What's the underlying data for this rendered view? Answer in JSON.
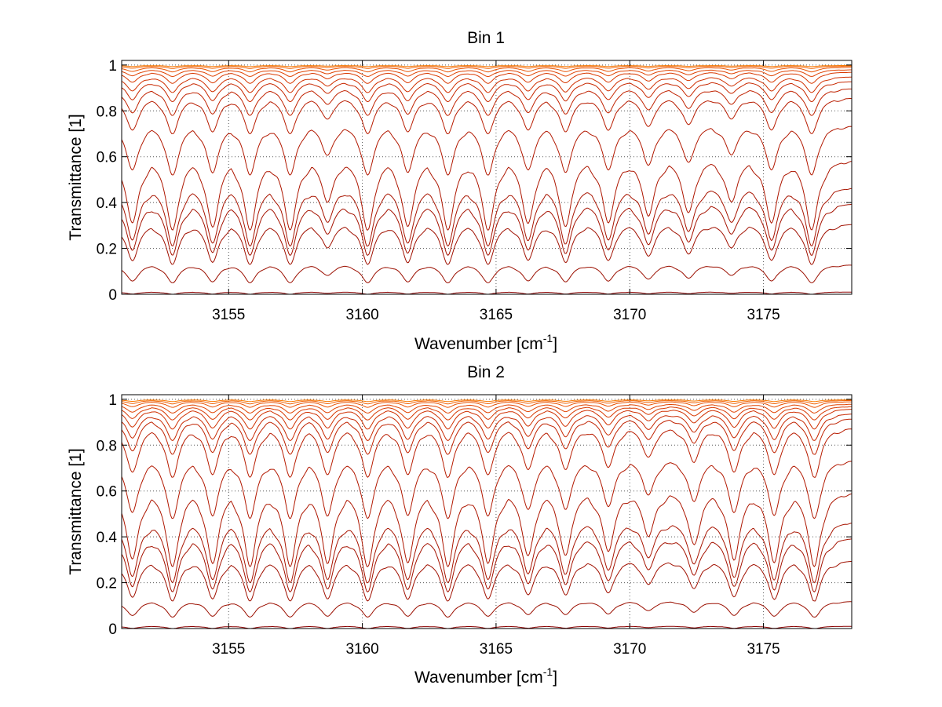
{
  "chart_data": [
    {
      "type": "line",
      "title": "Bin 1",
      "xlabel": "Wavenumber [cm",
      "xlabel_sup": "-1",
      "xlabel_suffix": "]",
      "ylabel": "Transmittance [1]",
      "xlim": [
        3151,
        3178.3
      ],
      "ylim": [
        0,
        1.02
      ],
      "grid": true,
      "xticks": [
        3155,
        3160,
        3165,
        3170,
        3175
      ],
      "xtick_labels": [
        "3155",
        "3160",
        "3165",
        "3170",
        "3175"
      ],
      "yticks": [
        0,
        0.2,
        0.4,
        0.6,
        0.8,
        1
      ],
      "ytick_labels": [
        "0",
        "0.2",
        "0.4",
        "0.6",
        "0.8",
        "1"
      ],
      "absorption_lines": [
        {
          "x": 3151.4,
          "depth": 0.9
        },
        {
          "x": 3152.9,
          "depth": 1.0
        },
        {
          "x": 3154.4,
          "depth": 0.95
        },
        {
          "x": 3155.8,
          "depth": 1.0
        },
        {
          "x": 3157.3,
          "depth": 1.0
        },
        {
          "x": 3158.7,
          "depth": 0.6
        },
        {
          "x": 3160.2,
          "depth": 1.0
        },
        {
          "x": 3161.7,
          "depth": 0.95
        },
        {
          "x": 3163.2,
          "depth": 1.0
        },
        {
          "x": 3164.7,
          "depth": 1.0
        },
        {
          "x": 3166.2,
          "depth": 0.9
        },
        {
          "x": 3167.6,
          "depth": 0.95
        },
        {
          "x": 3169.2,
          "depth": 0.9
        },
        {
          "x": 3170.7,
          "depth": 0.8
        },
        {
          "x": 3172.2,
          "depth": 0.75
        },
        {
          "x": 3173.8,
          "depth": 0.6
        },
        {
          "x": 3175.3,
          "depth": 0.9
        },
        {
          "x": 3176.8,
          "depth": 1.0
        }
      ],
      "series": [
        {
          "continuum": 0.01,
          "min": 0.0,
          "color": "#8b0000"
        },
        {
          "continuum": 0.13,
          "min": 0.05,
          "color": "#9b0f00"
        },
        {
          "continuum": 0.31,
          "min": 0.13,
          "color": "#a01000"
        },
        {
          "continuum": 0.4,
          "min": 0.17,
          "color": "#a51200"
        },
        {
          "continuum": 0.47,
          "min": 0.21,
          "color": "#a81400"
        },
        {
          "continuum": 0.59,
          "min": 0.28,
          "color": "#ad1600"
        },
        {
          "continuum": 0.74,
          "min": 0.52,
          "color": "#b21800"
        },
        {
          "continuum": 0.86,
          "min": 0.7,
          "color": "#b81c00"
        },
        {
          "continuum": 0.9,
          "min": 0.78,
          "color": "#c02200"
        },
        {
          "continuum": 0.93,
          "min": 0.84,
          "color": "#c82800"
        },
        {
          "continuum": 0.95,
          "min": 0.88,
          "color": "#d03000"
        },
        {
          "continuum": 0.97,
          "min": 0.92,
          "color": "#d83800"
        },
        {
          "continuum": 0.98,
          "min": 0.95,
          "color": "#e04200"
        },
        {
          "continuum": 0.99,
          "min": 0.97,
          "color": "#e85000"
        },
        {
          "continuum": 0.995,
          "min": 0.985,
          "color": "#f06000"
        },
        {
          "continuum": 0.998,
          "min": 0.993,
          "color": "#f87800"
        }
      ]
    },
    {
      "type": "line",
      "title": "Bin 2",
      "xlabel": "Wavenumber [cm",
      "xlabel_sup": "-1",
      "xlabel_suffix": "]",
      "ylabel": "Transmittance [1]",
      "xlim": [
        3151,
        3178.3
      ],
      "ylim": [
        0,
        1.02
      ],
      "grid": true,
      "xticks": [
        3155,
        3160,
        3165,
        3170,
        3175
      ],
      "xtick_labels": [
        "3155",
        "3160",
        "3165",
        "3170",
        "3175"
      ],
      "yticks": [
        0,
        0.2,
        0.4,
        0.6,
        0.8,
        1
      ],
      "ytick_labels": [
        "0",
        "0.2",
        "0.4",
        "0.6",
        "0.8",
        "1"
      ],
      "absorption_lines": [
        {
          "x": 3151.4,
          "depth": 0.9
        },
        {
          "x": 3152.9,
          "depth": 1.0
        },
        {
          "x": 3154.4,
          "depth": 0.95
        },
        {
          "x": 3155.8,
          "depth": 1.0
        },
        {
          "x": 3157.3,
          "depth": 1.0
        },
        {
          "x": 3158.7,
          "depth": 0.95
        },
        {
          "x": 3160.2,
          "depth": 1.0
        },
        {
          "x": 3161.7,
          "depth": 0.95
        },
        {
          "x": 3163.2,
          "depth": 1.0
        },
        {
          "x": 3164.7,
          "depth": 0.95
        },
        {
          "x": 3166.2,
          "depth": 0.85
        },
        {
          "x": 3167.6,
          "depth": 0.85
        },
        {
          "x": 3169.2,
          "depth": 0.8
        },
        {
          "x": 3170.7,
          "depth": 0.6
        },
        {
          "x": 3172.4,
          "depth": 0.7
        },
        {
          "x": 3173.9,
          "depth": 0.9
        },
        {
          "x": 3175.4,
          "depth": 0.95
        },
        {
          "x": 3176.9,
          "depth": 1.0
        }
      ],
      "series": [
        {
          "continuum": 0.01,
          "min": 0.0,
          "color": "#8b0000"
        },
        {
          "continuum": 0.12,
          "min": 0.05,
          "color": "#9b0f00"
        },
        {
          "continuum": 0.3,
          "min": 0.12,
          "color": "#a01000"
        },
        {
          "continuum": 0.4,
          "min": 0.16,
          "color": "#a51200"
        },
        {
          "continuum": 0.47,
          "min": 0.2,
          "color": "#a81400"
        },
        {
          "continuum": 0.6,
          "min": 0.27,
          "color": "#ad1600"
        },
        {
          "continuum": 0.74,
          "min": 0.48,
          "color": "#b21800"
        },
        {
          "continuum": 0.88,
          "min": 0.66,
          "color": "#b81c00"
        },
        {
          "continuum": 0.92,
          "min": 0.76,
          "color": "#c02200"
        },
        {
          "continuum": 0.94,
          "min": 0.82,
          "color": "#c82800"
        },
        {
          "continuum": 0.96,
          "min": 0.87,
          "color": "#d03000"
        },
        {
          "continuum": 0.97,
          "min": 0.91,
          "color": "#d83800"
        },
        {
          "continuum": 0.98,
          "min": 0.94,
          "color": "#e04200"
        },
        {
          "continuum": 0.99,
          "min": 0.965,
          "color": "#e85000"
        },
        {
          "continuum": 0.995,
          "min": 0.98,
          "color": "#f06000"
        },
        {
          "continuum": 0.998,
          "min": 0.99,
          "color": "#f87800"
        }
      ]
    }
  ]
}
